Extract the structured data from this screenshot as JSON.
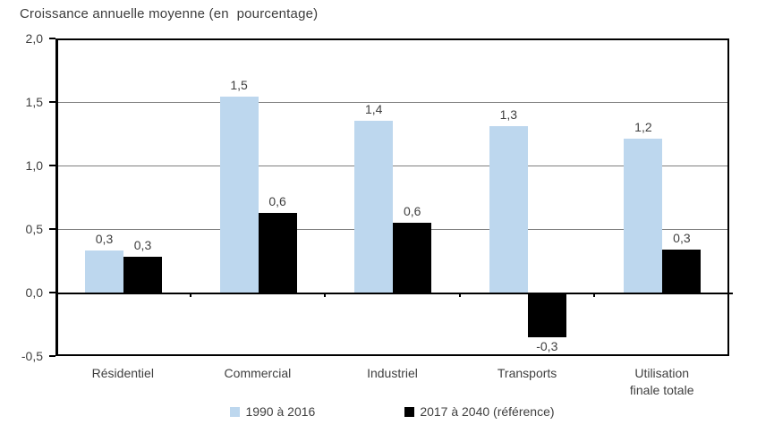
{
  "colors": {
    "series1_blue": "#BDD7EE",
    "series2_black": "#000000",
    "grid": "#7F7F7F",
    "axis": "#000000",
    "text": "#3F3F3F",
    "background": "#FFFFFF"
  },
  "legend": {
    "swatch1_icon": "square-icon",
    "swatch2_icon": "square-icon"
  },
  "chart_data": {
    "type": "bar",
    "title": "Croissance annuelle moyenne (en  pourcentage)",
    "xlabel": "",
    "ylabel": "",
    "categories": [
      "Résidentiel",
      "Commercial",
      "Industriel",
      "Transports",
      "Utilisation finale totale"
    ],
    "series": [
      {
        "name": "1990 à 2016",
        "color": "#BDD7EE",
        "values": [
          0.3,
          1.5,
          1.4,
          1.3,
          1.2
        ],
        "labels": [
          "0,3",
          "1,5",
          "1,4",
          "1,3",
          "1,2"
        ],
        "bar_heights_estimated": [
          0.33,
          1.54,
          1.35,
          1.31,
          1.21
        ]
      },
      {
        "name": "2017 à 2040 (référence)",
        "color": "#000000",
        "values": [
          0.3,
          0.6,
          0.6,
          -0.3,
          0.3
        ],
        "labels": [
          "0,3",
          "0,6",
          "0,6",
          "-0,3",
          "0,3"
        ],
        "bar_heights_estimated": [
          0.28,
          0.63,
          0.55,
          -0.34,
          0.34
        ]
      }
    ],
    "ylim": [
      -0.5,
      2.0
    ],
    "yticks": [
      2.0,
      1.5,
      1.0,
      0.5,
      0.0,
      -0.5
    ],
    "ytick_labels": [
      "2,0",
      "1,5",
      "1,0",
      "0,5",
      "0,0",
      "-0,5"
    ],
    "grid": true,
    "legend_position": "bottom"
  }
}
